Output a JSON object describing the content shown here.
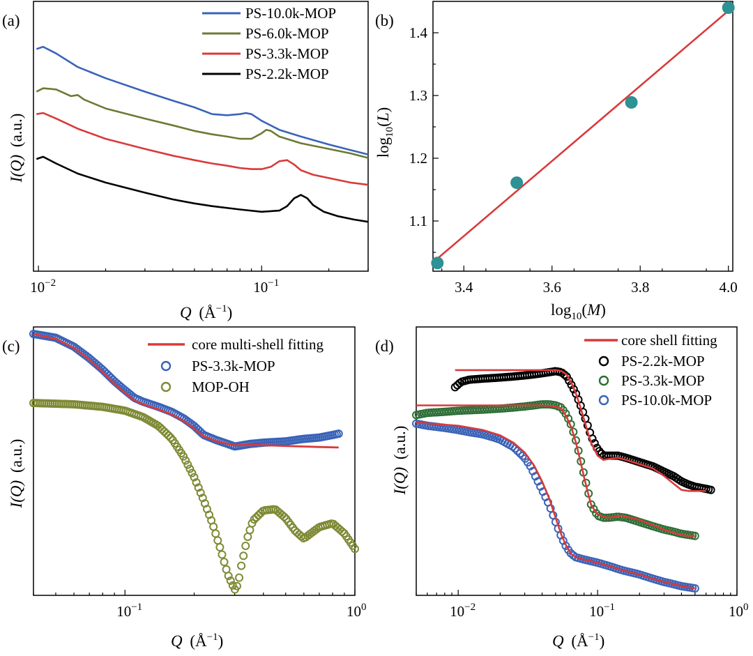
{
  "chart_data": [
    {
      "panel": "(a)",
      "type": "line",
      "xlabel_var": "Q",
      "xlabel_unit": "(Å",
      "xlabel_sup": "−1",
      "ylabel_var": "I(Q)",
      "ylabel_unit": "(a.u.)",
      "xscale": "log",
      "xlim": [
        0.0095,
        0.3
      ],
      "xticks": [
        {
          "value": 0.01,
          "base": "10",
          "exp": "−2"
        },
        {
          "value": 0.1,
          "base": "10",
          "exp": "−1"
        }
      ],
      "legend_position": "top-right",
      "series": [
        {
          "name": "PS-10.0k-MOP",
          "color": "#3a63b8",
          "x": [
            0.0098,
            0.0105,
            0.012,
            0.015,
            0.02,
            0.03,
            0.04,
            0.05,
            0.06,
            0.07,
            0.08,
            0.085,
            0.09,
            0.1,
            0.12,
            0.15,
            0.2,
            0.25,
            0.3
          ],
          "y": [
            8.5,
            8.6,
            8.3,
            7.7,
            7.2,
            6.6,
            6.2,
            5.9,
            5.6,
            5.55,
            5.6,
            5.65,
            5.6,
            5.3,
            4.9,
            4.6,
            4.25,
            4.0,
            3.8
          ]
        },
        {
          "name": "PS-6.0k-MOP",
          "color": "#6b7a35",
          "x": [
            0.0098,
            0.0105,
            0.012,
            0.014,
            0.015,
            0.016,
            0.02,
            0.03,
            0.04,
            0.05,
            0.06,
            0.07,
            0.08,
            0.09,
            0.1,
            0.105,
            0.11,
            0.12,
            0.15,
            0.2,
            0.25,
            0.3
          ],
          "y": [
            6.6,
            6.75,
            6.7,
            6.4,
            6.45,
            6.25,
            5.85,
            5.4,
            5.1,
            4.85,
            4.7,
            4.6,
            4.5,
            4.5,
            4.75,
            4.9,
            4.85,
            4.6,
            4.3,
            4.05,
            3.85,
            3.65
          ]
        },
        {
          "name": "PS-3.3k-MOP",
          "color": "#d93a3a",
          "x": [
            0.0098,
            0.0105,
            0.012,
            0.015,
            0.02,
            0.03,
            0.04,
            0.05,
            0.06,
            0.07,
            0.08,
            0.09,
            0.1,
            0.11,
            0.12,
            0.13,
            0.14,
            0.15,
            0.17,
            0.2,
            0.25,
            0.3
          ],
          "y": [
            5.6,
            5.65,
            5.4,
            4.95,
            4.5,
            4.05,
            3.75,
            3.55,
            3.4,
            3.3,
            3.2,
            3.15,
            3.15,
            3.25,
            3.5,
            3.55,
            3.35,
            3.1,
            2.9,
            2.75,
            2.55,
            2.45
          ]
        },
        {
          "name": "PS-2.2k-MOP",
          "color": "#000000",
          "x": [
            0.0098,
            0.0105,
            0.012,
            0.015,
            0.02,
            0.03,
            0.04,
            0.05,
            0.06,
            0.08,
            0.1,
            0.12,
            0.13,
            0.14,
            0.15,
            0.16,
            0.17,
            0.19,
            0.22,
            0.26,
            0.3
          ],
          "y": [
            3.6,
            3.7,
            3.4,
            2.95,
            2.55,
            2.1,
            1.8,
            1.62,
            1.5,
            1.35,
            1.25,
            1.3,
            1.5,
            1.85,
            2.0,
            1.85,
            1.55,
            1.25,
            1.05,
            0.9,
            0.8
          ]
        }
      ]
    },
    {
      "panel": "(b)",
      "type": "scatter",
      "xlabel": "log₁₀(M)",
      "ylabel": "log₁₀(L)",
      "xlim": [
        3.33,
        4.01
      ],
      "ylim": [
        1.02,
        1.45
      ],
      "xticks": [
        3.4,
        3.6,
        3.8,
        4.0
      ],
      "yticks": [
        1.1,
        1.2,
        1.3,
        1.4
      ],
      "xtick_labels": [
        "3.4",
        "3.6",
        "3.8",
        "4.0"
      ],
      "ytick_labels": [
        "1.1",
        "1.2",
        "1.3",
        "1.4"
      ],
      "point_color": "#2e9193",
      "fit_color": "#d93a3a",
      "points": {
        "x": [
          3.34,
          3.52,
          3.78,
          4.0
        ],
        "y": [
          1.033,
          1.161,
          1.289,
          1.44
        ]
      },
      "fit": {
        "x": [
          3.34,
          4.0
        ],
        "y": [
          1.04,
          1.435
        ]
      }
    },
    {
      "panel": "(c)",
      "type": "scatter",
      "xlabel_var": "Q",
      "xlabel_unit": "(Å",
      "xlabel_sup": "−1",
      "ylabel_var": "I(Q)",
      "ylabel_unit": "(a.u.)",
      "xscale": "log",
      "xlim": [
        0.04,
        1.0
      ],
      "xticks": [
        {
          "value": 0.1,
          "base": "10",
          "exp": "−1"
        },
        {
          "value": 1.0,
          "base": "10",
          "exp": "0"
        }
      ],
      "legend_position": "top-right",
      "fit": {
        "name": "core multi-shell fitting",
        "color": "#d93a3a",
        "x": [
          0.04,
          0.05,
          0.06,
          0.07,
          0.08,
          0.09,
          0.1,
          0.11,
          0.12,
          0.14,
          0.16,
          0.18,
          0.2,
          0.22,
          0.25,
          0.28,
          0.3,
          0.35,
          0.4,
          0.5,
          0.6,
          0.7,
          0.85
        ],
        "y": [
          10.0,
          9.8,
          9.45,
          9.0,
          8.5,
          8.05,
          7.7,
          7.4,
          7.25,
          7.05,
          6.85,
          6.6,
          6.3,
          6.0,
          5.8,
          5.7,
          5.65,
          5.66,
          5.65,
          5.62,
          5.6,
          5.58,
          5.56
        ]
      },
      "series": [
        {
          "name": "PS-3.3k-MOP",
          "color": "#3a63b8",
          "x": [
            0.04,
            0.05,
            0.06,
            0.07,
            0.08,
            0.09,
            0.1,
            0.11,
            0.12,
            0.14,
            0.16,
            0.18,
            0.2,
            0.22,
            0.25,
            0.28,
            0.3,
            0.35,
            0.4,
            0.5,
            0.6,
            0.7,
            0.8,
            0.85
          ],
          "y": [
            10.0,
            9.85,
            9.5,
            9.05,
            8.6,
            8.15,
            7.8,
            7.5,
            7.35,
            7.15,
            6.95,
            6.7,
            6.4,
            6.05,
            5.85,
            5.7,
            5.6,
            5.7,
            5.75,
            5.8,
            5.9,
            5.95,
            6.05,
            6.1
          ]
        },
        {
          "name": "MOP-OH",
          "color": "#7f8a35",
          "x": [
            0.04,
            0.06,
            0.08,
            0.1,
            0.12,
            0.14,
            0.16,
            0.18,
            0.2,
            0.22,
            0.24,
            0.26,
            0.28,
            0.3,
            0.31,
            0.32,
            0.34,
            0.36,
            0.4,
            0.45,
            0.5,
            0.55,
            0.6,
            0.7,
            0.8,
            0.9,
            1.0
          ],
          "y": [
            7.3,
            7.25,
            7.15,
            7.0,
            6.75,
            6.4,
            5.9,
            5.2,
            4.4,
            3.5,
            2.6,
            1.6,
            0.6,
            0.0,
            0.2,
            0.9,
            2.0,
            2.7,
            3.1,
            3.15,
            2.8,
            2.3,
            2.0,
            2.45,
            2.6,
            2.2,
            1.6
          ]
        }
      ]
    },
    {
      "panel": "(d)",
      "type": "scatter",
      "xlabel_var": "Q",
      "xlabel_unit": "(Å",
      "xlabel_sup": "−1",
      "ylabel_var": "I(Q)",
      "ylabel_unit": "(a.u.)",
      "xscale": "log",
      "xlim": [
        0.005,
        1.0
      ],
      "xticks": [
        {
          "value": 0.01,
          "base": "10",
          "exp": "−2"
        },
        {
          "value": 0.1,
          "base": "10",
          "exp": "−1"
        },
        {
          "value": 1.0,
          "base": "10",
          "exp": "0"
        }
      ],
      "legend_position": "top-right",
      "fit_name": "core shell fitting",
      "fit_color": "#d93a3a",
      "series": [
        {
          "name": "PS-2.2k-MOP",
          "color": "#000000",
          "x": [
            0.0095,
            0.0105,
            0.012,
            0.015,
            0.02,
            0.025,
            0.03,
            0.035,
            0.04,
            0.045,
            0.05,
            0.055,
            0.06,
            0.065,
            0.07,
            0.075,
            0.08,
            0.085,
            0.09,
            0.1,
            0.11,
            0.12,
            0.14,
            0.16,
            0.2,
            0.25,
            0.3,
            0.35,
            0.4,
            0.45,
            0.5,
            0.55,
            0.6,
            0.65
          ],
          "y": [
            9.4,
            9.65,
            9.75,
            9.8,
            9.85,
            9.9,
            9.95,
            10.0,
            10.05,
            10.1,
            10.15,
            10.1,
            9.9,
            9.5,
            9.1,
            8.6,
            8.1,
            7.6,
            7.1,
            6.5,
            6.2,
            6.2,
            6.2,
            6.1,
            5.9,
            5.7,
            5.45,
            5.25,
            5.0,
            4.85,
            4.75,
            4.7,
            4.65,
            4.6
          ]
        },
        {
          "name": "PS-3.3k-MOP",
          "color": "#2e6e36",
          "x": [
            0.005,
            0.006,
            0.008,
            0.01,
            0.015,
            0.02,
            0.025,
            0.03,
            0.035,
            0.04,
            0.045,
            0.05,
            0.055,
            0.06,
            0.065,
            0.07,
            0.075,
            0.08,
            0.085,
            0.09,
            0.1,
            0.11,
            0.12,
            0.14,
            0.16,
            0.2,
            0.25,
            0.3,
            0.35,
            0.4,
            0.45,
            0.5
          ],
          "y": [
            8.1,
            8.2,
            8.25,
            8.3,
            8.35,
            8.4,
            8.45,
            8.5,
            8.55,
            8.6,
            8.6,
            8.55,
            8.45,
            8.1,
            7.6,
            6.9,
            6.1,
            5.3,
            4.6,
            3.9,
            3.4,
            3.3,
            3.3,
            3.35,
            3.3,
            3.1,
            2.9,
            2.75,
            2.65,
            2.55,
            2.5,
            2.45
          ]
        },
        {
          "name": "PS-10.0k-MOP",
          "color": "#3a63b8",
          "x": [
            0.005,
            0.006,
            0.008,
            0.01,
            0.012,
            0.015,
            0.018,
            0.02,
            0.025,
            0.03,
            0.033,
            0.036,
            0.04,
            0.045,
            0.05,
            0.055,
            0.06,
            0.065,
            0.07,
            0.08,
            0.1,
            0.12,
            0.15,
            0.2,
            0.25,
            0.3,
            0.35,
            0.4,
            0.45,
            0.5
          ],
          "y": [
            7.7,
            7.6,
            7.5,
            7.4,
            7.3,
            7.2,
            7.05,
            6.95,
            6.6,
            6.1,
            5.7,
            5.2,
            4.6,
            3.9,
            3.1,
            2.4,
            1.9,
            1.6,
            1.45,
            1.35,
            1.2,
            1.05,
            0.85,
            0.65,
            0.45,
            0.3,
            0.2,
            0.1,
            0.05,
            0.0
          ]
        }
      ],
      "fits": [
        {
          "for": "PS-2.2k-MOP",
          "x": [
            0.0095,
            0.015,
            0.02,
            0.03,
            0.04,
            0.05,
            0.055,
            0.06,
            0.065,
            0.07,
            0.075,
            0.08,
            0.085,
            0.09,
            0.1,
            0.11,
            0.12,
            0.14,
            0.16,
            0.2,
            0.25,
            0.3,
            0.35,
            0.4,
            0.45,
            0.5,
            0.55,
            0.6
          ],
          "y": [
            10.2,
            10.2,
            10.2,
            10.2,
            10.2,
            10.2,
            10.15,
            10.0,
            9.6,
            9.1,
            8.5,
            7.9,
            7.3,
            6.8,
            6.2,
            6.0,
            6.05,
            6.1,
            6.0,
            5.8,
            5.6,
            5.25,
            4.9,
            4.6,
            4.55,
            4.55,
            4.55,
            4.55
          ]
        },
        {
          "for": "PS-3.3k-MOP",
          "x": [
            0.005,
            0.01,
            0.02,
            0.03,
            0.04,
            0.05,
            0.055,
            0.06,
            0.065,
            0.07,
            0.075,
            0.08,
            0.085,
            0.09,
            0.1,
            0.12,
            0.15,
            0.2,
            0.25,
            0.3,
            0.35,
            0.4,
            0.45,
            0.5
          ],
          "y": [
            8.55,
            8.55,
            8.55,
            8.55,
            8.55,
            8.5,
            8.4,
            8.0,
            7.5,
            6.8,
            6.0,
            5.2,
            4.5,
            3.9,
            3.45,
            3.3,
            3.4,
            3.2,
            2.95,
            2.75,
            2.6,
            2.5,
            2.45,
            2.45
          ]
        },
        {
          "for": "PS-10.0k-MOP",
          "x": [
            0.005,
            0.01,
            0.015,
            0.02,
            0.025,
            0.03,
            0.035,
            0.04,
            0.045,
            0.05,
            0.055,
            0.06,
            0.065,
            0.07,
            0.08,
            0.1,
            0.12,
            0.15,
            0.2,
            0.25,
            0.3,
            0.35,
            0.4,
            0.45,
            0.5
          ],
          "y": [
            7.75,
            7.6,
            7.4,
            7.15,
            6.8,
            6.35,
            5.75,
            5.0,
            4.2,
            3.3,
            2.5,
            1.95,
            1.6,
            1.45,
            1.35,
            1.2,
            1.05,
            0.85,
            0.65,
            0.45,
            0.3,
            0.2,
            0.1,
            0.05,
            0.0
          ]
        }
      ]
    }
  ]
}
